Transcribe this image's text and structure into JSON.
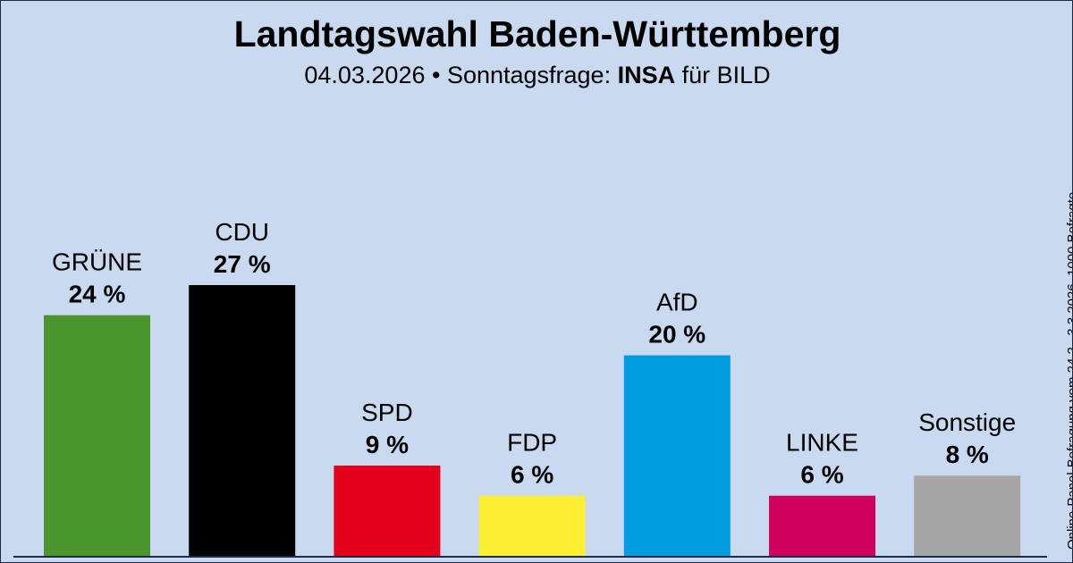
{
  "header": {
    "title": "Landtagswahl Baden-Württemberg",
    "date": "04.03.2026",
    "separator": " • Sonntagsfrage: ",
    "institute": "INSA",
    "client": " für BILD"
  },
  "footnote": "Online-Panel-Befragung vom 24.2.–3.3.2026, 1000 Befragte",
  "colors": {
    "background": "#c8d9f0",
    "axis": "#1f2a44"
  },
  "chart_data": {
    "type": "bar",
    "title": "Landtagswahl Baden-Württemberg",
    "subtitle": "04.03.2026 • Sonntagsfrage: INSA für BILD",
    "xlabel": "",
    "ylabel": "",
    "ylim": [
      0,
      27
    ],
    "unit": "%",
    "grid": false,
    "categories": [
      "GRÜNE",
      "CDU",
      "SPD",
      "FDP",
      "AfD",
      "LINKE",
      "Sonstige"
    ],
    "values": [
      24,
      27,
      9,
      6,
      20,
      6,
      8
    ],
    "value_labels": [
      "24 %",
      "27 %",
      "9 %",
      "6 %",
      "20 %",
      "6 %",
      "8 %"
    ],
    "colors": [
      "#4a962d",
      "#000000",
      "#e2001a",
      "#fcee32",
      "#009ee0",
      "#d0005f",
      "#a6a6a6"
    ]
  }
}
